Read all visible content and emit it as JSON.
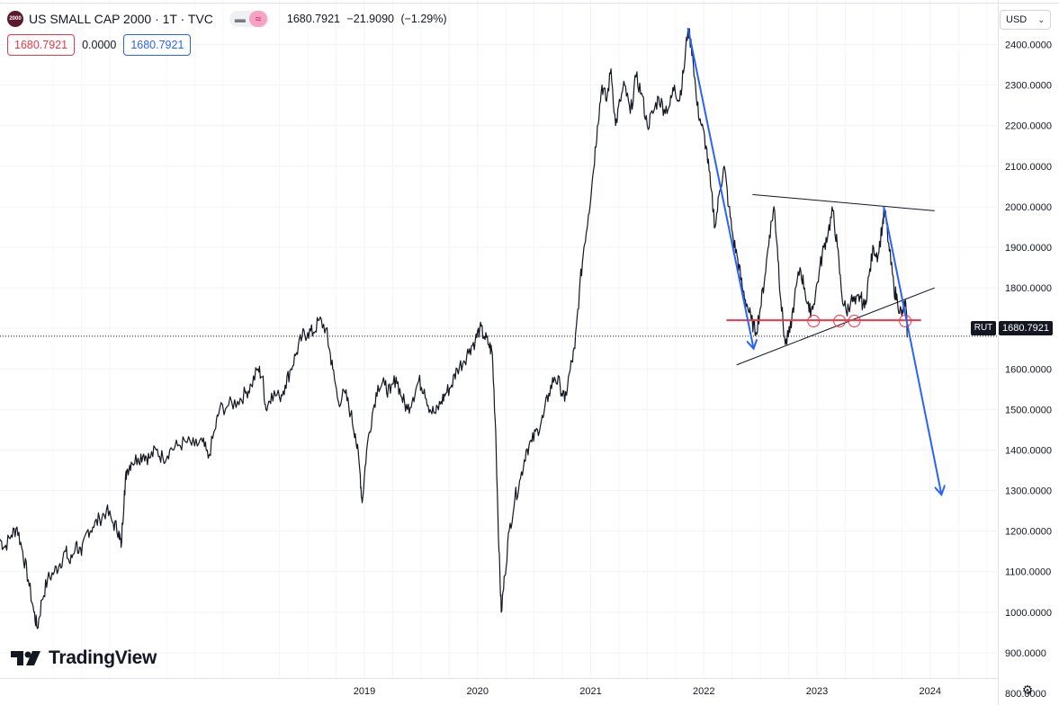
{
  "header": {
    "logo_text": "2000",
    "title": "US SMALL CAP 2000 · 1T · TVC",
    "hide_icon": "minus-icon",
    "compare_icon": "wave-icon",
    "last": "1680.7921",
    "change": "−21.9090",
    "change_pct": "(−1.29%)"
  },
  "price_boxes": {
    "bid": "1680.7921",
    "spread": "0.0000",
    "ask": "1680.7921"
  },
  "axis": {
    "currency": "USD",
    "symbol": "RUT",
    "last_price_label": "1680.7921"
  },
  "branding": {
    "logo_text": "TradingView"
  },
  "colors": {
    "line": "#131722",
    "blue": "#2962ff",
    "red": "#f23645",
    "grid": "#f0f3fa"
  },
  "chart_data": {
    "type": "line",
    "title": "US SMALL CAP 2000 · 1T · TVC",
    "ylim": [
      800,
      2430
    ],
    "y_ticks": [
      "2400.0000",
      "2300.0000",
      "2200.0000",
      "2100.0000",
      "2000.0000",
      "1900.0000",
      "1800.0000",
      "1700.0000",
      "1600.0000",
      "1500.0000",
      "1400.0000",
      "1300.0000",
      "1200.0000",
      "1100.0000",
      "1000.0000",
      "900.0000",
      "800.0000"
    ],
    "x_ticks": [
      {
        "label": "2019",
        "t": 2019.0
      },
      {
        "label": "2020",
        "t": 2020.0
      },
      {
        "label": "2021",
        "t": 2021.0
      },
      {
        "label": "2022",
        "t": 2022.0
      },
      {
        "label": "2023",
        "t": 2023.0
      },
      {
        "label": "2024",
        "t": 2024.0
      }
    ],
    "xlim": [
      2015.78,
      2024.59
    ],
    "series": [
      {
        "values": [
          [
            2015.78,
            1180
          ],
          [
            2015.82,
            1160
          ],
          [
            2015.88,
            1190
          ],
          [
            2015.93,
            1210
          ],
          [
            2015.98,
            1150
          ],
          [
            2016.03,
            1080
          ],
          [
            2016.08,
            1000
          ],
          [
            2016.11,
            960
          ],
          [
            2016.15,
            1030
          ],
          [
            2016.2,
            1080
          ],
          [
            2016.26,
            1100
          ],
          [
            2016.31,
            1120
          ],
          [
            2016.36,
            1150
          ],
          [
            2016.4,
            1120
          ],
          [
            2016.45,
            1170
          ],
          [
            2016.5,
            1140
          ],
          [
            2016.55,
            1200
          ],
          [
            2016.6,
            1210
          ],
          [
            2016.66,
            1230
          ],
          [
            2016.72,
            1250
          ],
          [
            2016.78,
            1220
          ],
          [
            2016.83,
            1200
          ],
          [
            2016.85,
            1160
          ],
          [
            2016.88,
            1300
          ],
          [
            2016.9,
            1350
          ],
          [
            2016.94,
            1370
          ],
          [
            2017.0,
            1380
          ],
          [
            2017.05,
            1390
          ],
          [
            2017.1,
            1380
          ],
          [
            2017.16,
            1400
          ],
          [
            2017.22,
            1380
          ],
          [
            2017.28,
            1400
          ],
          [
            2017.35,
            1410
          ],
          [
            2017.42,
            1420
          ],
          [
            2017.5,
            1410
          ],
          [
            2017.57,
            1420
          ],
          [
            2017.62,
            1380
          ],
          [
            2017.68,
            1450
          ],
          [
            2017.72,
            1500
          ],
          [
            2017.8,
            1510
          ],
          [
            2017.88,
            1520
          ],
          [
            2017.95,
            1540
          ],
          [
            2018.0,
            1560
          ],
          [
            2018.06,
            1600
          ],
          [
            2018.1,
            1580
          ],
          [
            2018.13,
            1500
          ],
          [
            2018.18,
            1540
          ],
          [
            2018.25,
            1530
          ],
          [
            2018.3,
            1560
          ],
          [
            2018.35,
            1600
          ],
          [
            2018.4,
            1640
          ],
          [
            2018.45,
            1680
          ],
          [
            2018.5,
            1690
          ],
          [
            2018.55,
            1690
          ],
          [
            2018.6,
            1720
          ],
          [
            2018.66,
            1700
          ],
          [
            2018.69,
            1650
          ],
          [
            2018.72,
            1600
          ],
          [
            2018.77,
            1520
          ],
          [
            2018.83,
            1540
          ],
          [
            2018.88,
            1490
          ],
          [
            2018.92,
            1440
          ],
          [
            2018.96,
            1350
          ],
          [
            2018.98,
            1270
          ],
          [
            2019.02,
            1400
          ],
          [
            2019.07,
            1490
          ],
          [
            2019.12,
            1560
          ],
          [
            2019.18,
            1560
          ],
          [
            2019.23,
            1540
          ],
          [
            2019.28,
            1580
          ],
          [
            2019.33,
            1530
          ],
          [
            2019.38,
            1500
          ],
          [
            2019.43,
            1530
          ],
          [
            2019.48,
            1570
          ],
          [
            2019.53,
            1550
          ],
          [
            2019.58,
            1500
          ],
          [
            2019.63,
            1490
          ],
          [
            2019.68,
            1520
          ],
          [
            2019.72,
            1540
          ],
          [
            2019.77,
            1560
          ],
          [
            2019.82,
            1600
          ],
          [
            2019.88,
            1620
          ],
          [
            2019.93,
            1650
          ],
          [
            2019.98,
            1670
          ],
          [
            2020.02,
            1700
          ],
          [
            2020.06,
            1680
          ],
          [
            2020.1,
            1660
          ],
          [
            2020.13,
            1640
          ],
          [
            2020.16,
            1450
          ],
          [
            2020.19,
            1150
          ],
          [
            2020.21,
            1000
          ],
          [
            2020.24,
            1090
          ],
          [
            2020.28,
            1200
          ],
          [
            2020.33,
            1280
          ],
          [
            2020.38,
            1330
          ],
          [
            2020.43,
            1400
          ],
          [
            2020.48,
            1420
          ],
          [
            2020.53,
            1450
          ],
          [
            2020.58,
            1480
          ],
          [
            2020.63,
            1540
          ],
          [
            2020.68,
            1580
          ],
          [
            2020.73,
            1560
          ],
          [
            2020.77,
            1520
          ],
          [
            2020.82,
            1600
          ],
          [
            2020.86,
            1650
          ],
          [
            2020.9,
            1790
          ],
          [
            2020.94,
            1900
          ],
          [
            2020.98,
            1980
          ],
          [
            2021.02,
            2080
          ],
          [
            2021.06,
            2200
          ],
          [
            2021.1,
            2300
          ],
          [
            2021.14,
            2260
          ],
          [
            2021.18,
            2340
          ],
          [
            2021.22,
            2200
          ],
          [
            2021.26,
            2260
          ],
          [
            2021.3,
            2300
          ],
          [
            2021.35,
            2230
          ],
          [
            2021.4,
            2320
          ],
          [
            2021.45,
            2280
          ],
          [
            2021.5,
            2200
          ],
          [
            2021.55,
            2230
          ],
          [
            2021.6,
            2270
          ],
          [
            2021.65,
            2240
          ],
          [
            2021.7,
            2250
          ],
          [
            2021.74,
            2300
          ],
          [
            2021.78,
            2260
          ],
          [
            2021.82,
            2330
          ],
          [
            2021.86,
            2440
          ],
          [
            2021.9,
            2380
          ],
          [
            2021.94,
            2250
          ],
          [
            2021.98,
            2200
          ],
          [
            2022.02,
            2150
          ],
          [
            2022.06,
            2050
          ],
          [
            2022.1,
            1950
          ],
          [
            2022.14,
            2040
          ],
          [
            2022.18,
            2100
          ],
          [
            2022.22,
            2000
          ],
          [
            2022.26,
            1920
          ],
          [
            2022.3,
            1870
          ],
          [
            2022.34,
            1800
          ],
          [
            2022.38,
            1760
          ],
          [
            2022.42,
            1720
          ],
          [
            2022.46,
            1690
          ],
          [
            2022.5,
            1750
          ],
          [
            2022.54,
            1830
          ],
          [
            2022.58,
            1930
          ],
          [
            2022.62,
            2000
          ],
          [
            2022.65,
            1900
          ],
          [
            2022.68,
            1770
          ],
          [
            2022.72,
            1660
          ],
          [
            2022.76,
            1690
          ],
          [
            2022.8,
            1770
          ],
          [
            2022.85,
            1850
          ],
          [
            2022.89,
            1800
          ],
          [
            2022.93,
            1740
          ],
          [
            2022.97,
            1760
          ],
          [
            2023.02,
            1840
          ],
          [
            2023.06,
            1900
          ],
          [
            2023.1,
            1940
          ],
          [
            2023.14,
            1990
          ],
          [
            2023.18,
            1900
          ],
          [
            2023.22,
            1780
          ],
          [
            2023.26,
            1740
          ],
          [
            2023.3,
            1770
          ],
          [
            2023.34,
            1760
          ],
          [
            2023.38,
            1780
          ],
          [
            2023.42,
            1750
          ],
          [
            2023.46,
            1830
          ],
          [
            2023.5,
            1900
          ],
          [
            2023.54,
            1880
          ],
          [
            2023.58,
            1960
          ],
          [
            2023.6,
            1990
          ],
          [
            2023.64,
            1890
          ],
          [
            2023.68,
            1800
          ],
          [
            2023.71,
            1770
          ],
          [
            2023.75,
            1730
          ],
          [
            2023.78,
            1770
          ],
          [
            2023.8,
            1680
          ]
        ]
      }
    ],
    "annotations": {
      "blue_arrows": [
        {
          "from": [
            2021.86,
            2440
          ],
          "to": [
            2022.44,
            1650
          ]
        },
        {
          "from": [
            2023.59,
            2000
          ],
          "to": [
            2024.1,
            1290
          ]
        }
      ],
      "black_lines": [
        {
          "from": [
            2022.43,
            2030
          ],
          "to": [
            2024.04,
            1990
          ]
        },
        {
          "from": [
            2022.29,
            1610
          ],
          "to": [
            2024.04,
            1800
          ]
        }
      ],
      "red_line": {
        "from": [
          2022.2,
          1720
        ],
        "to": [
          2023.92,
          1720
        ]
      },
      "red_circles": [
        [
          2022.97,
          1718
        ],
        [
          2023.2,
          1718
        ],
        [
          2023.33,
          1718
        ],
        [
          2023.78,
          1718
        ]
      ],
      "last_price": 1680.7921
    }
  }
}
